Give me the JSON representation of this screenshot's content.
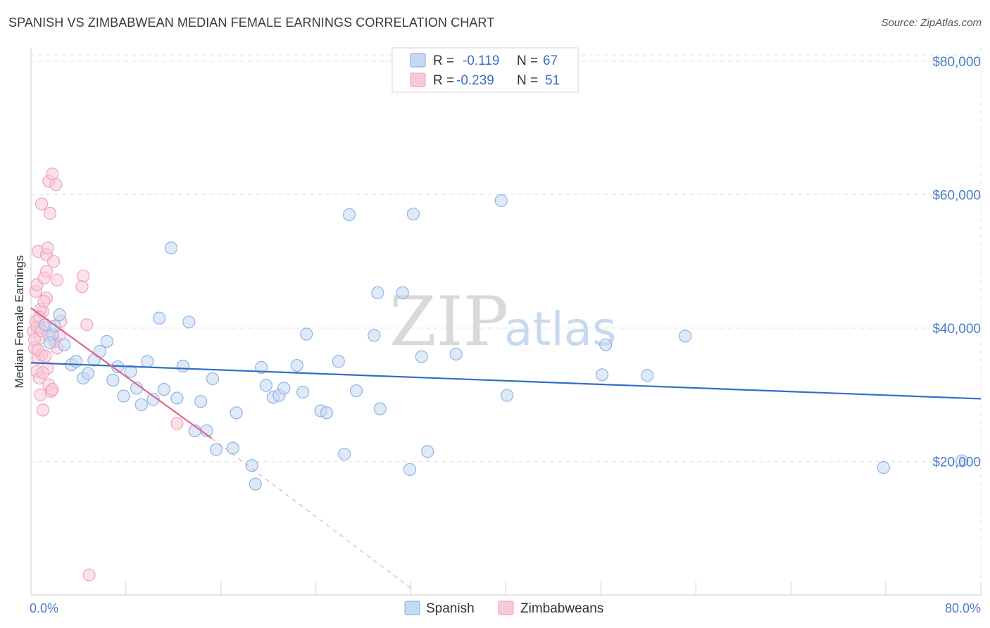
{
  "chart_data": {
    "type": "scatter",
    "title": "SPANISH VS ZIMBABWEAN MEDIAN FEMALE EARNINGS CORRELATION CHART",
    "source": "Source: ZipAtlas.com",
    "xlabel": "",
    "ylabel": "Median Female Earnings",
    "xlim": [
      0,
      80
    ],
    "ylim": [
      0,
      82000
    ],
    "x_tick_labels": [
      "0.0%",
      "80.0%"
    ],
    "y_ticks": [
      {
        "value": 20000,
        "label": "$20,000"
      },
      {
        "value": 40000,
        "label": "$40,000"
      },
      {
        "value": 60000,
        "label": "$60,000"
      },
      {
        "value": 80000,
        "label": "$80,000"
      }
    ],
    "grid": true,
    "watermark": {
      "zip": "ZIP",
      "atlas": "atlas"
    },
    "legend": {
      "placement": "top-center",
      "rows": [
        {
          "series": "Spanish",
          "r_label": "R =",
          "r_value": "-0.119",
          "n_label": "N =",
          "n_value": "67"
        },
        {
          "series": "Zimbabweans",
          "r_label": "R =",
          "r_value": "-0.239",
          "n_label": "N =",
          "n_value": "51"
        }
      ]
    },
    "series": [
      {
        "name": "Spanish",
        "color": "#8fb3e6",
        "fill": "#c5d9f3",
        "line_color": "#2f6fc7",
        "trend": {
          "x": [
            0,
            80
          ],
          "y": [
            34800,
            29400
          ]
        },
        "points": [
          [
            1.2,
            40500
          ],
          [
            1.8,
            39000
          ],
          [
            2.4,
            42000
          ],
          [
            2.8,
            37500
          ],
          [
            3.4,
            34500
          ],
          [
            3.8,
            35000
          ],
          [
            4.4,
            32500
          ],
          [
            4.8,
            33200
          ],
          [
            5.3,
            35200
          ],
          [
            5.8,
            36500
          ],
          [
            6.4,
            38000
          ],
          [
            6.9,
            32200
          ],
          [
            7.3,
            34200
          ],
          [
            7.8,
            29800
          ],
          [
            8.4,
            33500
          ],
          [
            8.9,
            31000
          ],
          [
            9.3,
            28500
          ],
          [
            9.8,
            35000
          ],
          [
            10.3,
            29300
          ],
          [
            10.8,
            41500
          ],
          [
            11.2,
            30800
          ],
          [
            11.8,
            52000
          ],
          [
            12.3,
            29500
          ],
          [
            12.8,
            34300
          ],
          [
            13.3,
            40900
          ],
          [
            13.8,
            24600
          ],
          [
            14.3,
            29000
          ],
          [
            14.8,
            24600
          ],
          [
            15.3,
            32400
          ],
          [
            15.6,
            21800
          ],
          [
            17.0,
            22000
          ],
          [
            17.3,
            27300
          ],
          [
            18.6,
            19400
          ],
          [
            18.9,
            16600
          ],
          [
            19.4,
            34100
          ],
          [
            19.8,
            31400
          ],
          [
            20.4,
            29600
          ],
          [
            20.9,
            29900
          ],
          [
            21.3,
            31000
          ],
          [
            22.4,
            34400
          ],
          [
            22.9,
            30400
          ],
          [
            23.2,
            39100
          ],
          [
            24.4,
            27600
          ],
          [
            24.9,
            27300
          ],
          [
            25.9,
            35000
          ],
          [
            26.4,
            21100
          ],
          [
            26.8,
            57000
          ],
          [
            27.4,
            30600
          ],
          [
            28.9,
            38900
          ],
          [
            29.2,
            45300
          ],
          [
            29.4,
            27900
          ],
          [
            31.3,
            45300
          ],
          [
            31.9,
            18800
          ],
          [
            32.2,
            57100
          ],
          [
            32.9,
            35700
          ],
          [
            33.4,
            21500
          ],
          [
            35.8,
            36100
          ],
          [
            39.6,
            59100
          ],
          [
            40.1,
            29900
          ],
          [
            48.1,
            33000
          ],
          [
            48.4,
            37500
          ],
          [
            51.9,
            32900
          ],
          [
            55.1,
            38800
          ],
          [
            71.8,
            19100
          ],
          [
            78.4,
            20100
          ],
          [
            1.6,
            37800
          ],
          [
            2.0,
            40300
          ]
        ]
      },
      {
        "name": "Zimbabweans",
        "color": "#f0a3bd",
        "fill": "#f8cad9",
        "line_color": "#e0668f",
        "trend": {
          "x": [
            0,
            15.2
          ],
          "y": [
            43000,
            23500
          ]
        },
        "trend_dashed": {
          "x": [
            15.2,
            32.0
          ],
          "y": [
            23500,
            1000
          ]
        },
        "points": [
          [
            0.2,
            39500
          ],
          [
            0.3,
            37000
          ],
          [
            0.4,
            41000
          ],
          [
            0.5,
            33500
          ],
          [
            0.6,
            35500
          ],
          [
            0.7,
            32500
          ],
          [
            0.8,
            30000
          ],
          [
            0.4,
            45500
          ],
          [
            0.5,
            46500
          ],
          [
            0.6,
            51500
          ],
          [
            0.7,
            40000
          ],
          [
            0.8,
            38500
          ],
          [
            0.9,
            36000
          ],
          [
            1.0,
            42500
          ],
          [
            0.9,
            58600
          ],
          [
            1.0,
            27700
          ],
          [
            1.1,
            47500
          ],
          [
            1.2,
            40000
          ],
          [
            1.3,
            44500
          ],
          [
            1.3,
            51000
          ],
          [
            1.3,
            48500
          ],
          [
            1.4,
            52000
          ],
          [
            1.4,
            34000
          ],
          [
            1.5,
            31500
          ],
          [
            1.6,
            57200
          ],
          [
            1.5,
            62000
          ],
          [
            1.7,
            30500
          ],
          [
            1.8,
            63100
          ],
          [
            1.8,
            30800
          ],
          [
            1.9,
            50000
          ],
          [
            2.0,
            38000
          ],
          [
            2.1,
            61500
          ],
          [
            2.2,
            47200
          ],
          [
            2.2,
            37000
          ],
          [
            2.4,
            39000
          ],
          [
            2.5,
            41000
          ],
          [
            4.4,
            47800
          ],
          [
            4.3,
            46200
          ],
          [
            4.7,
            40500
          ],
          [
            12.3,
            25700
          ],
          [
            4.9,
            3000
          ],
          [
            0.3,
            38300
          ],
          [
            0.5,
            40200
          ],
          [
            0.6,
            36700
          ],
          [
            0.8,
            42800
          ],
          [
            0.9,
            39600
          ],
          [
            1.1,
            44000
          ],
          [
            1.2,
            35800
          ],
          [
            0.7,
            41600
          ],
          [
            1.0,
            33300
          ],
          [
            1.5,
            38900
          ]
        ]
      }
    ]
  }
}
